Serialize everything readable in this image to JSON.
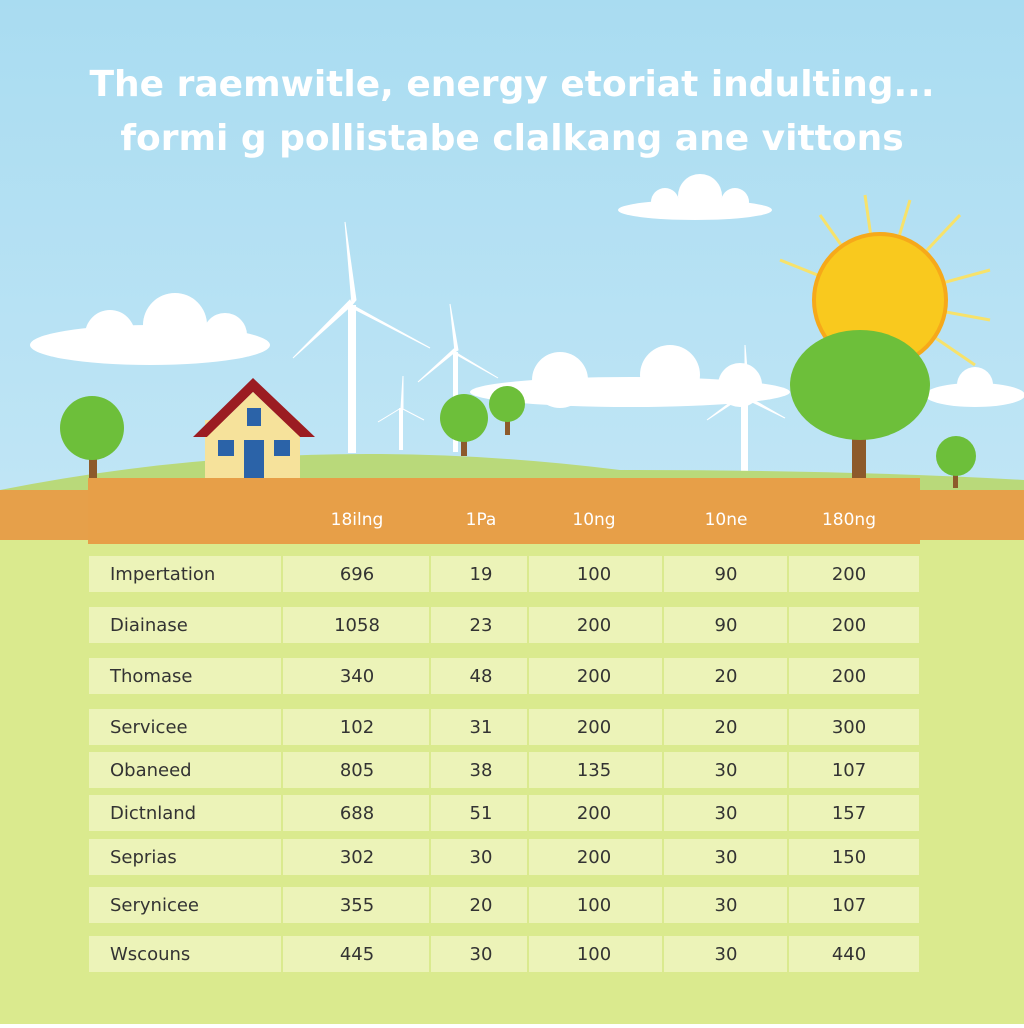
{
  "header": {
    "title": [
      "The raemwitle, energy etoriat indulting...",
      "formi g pollistabe clalkang ane vittons"
    ]
  },
  "table": {
    "columns": [
      "18ilng",
      "1Pa",
      "10ng",
      "10ne",
      "180ng"
    ],
    "rows": [
      [
        "Impertation",
        696,
        19,
        100,
        90,
        200
      ],
      [
        "Diainase",
        1058,
        23,
        200,
        90,
        200
      ],
      [
        "Thomase",
        340,
        48,
        200,
        20,
        200
      ],
      [
        "Servicee",
        102,
        31,
        200,
        20,
        300
      ],
      [
        "Obaneed",
        805,
        38,
        135,
        30,
        107
      ],
      [
        "Dictnland",
        688,
        51,
        200,
        30,
        157
      ],
      [
        "Seprias",
        302,
        30,
        200,
        30,
        150
      ],
      [
        "Serynicee",
        355,
        20,
        100,
        30,
        107
      ],
      [
        "Wscouns",
        445,
        30,
        100,
        30,
        440
      ]
    ]
  }
}
